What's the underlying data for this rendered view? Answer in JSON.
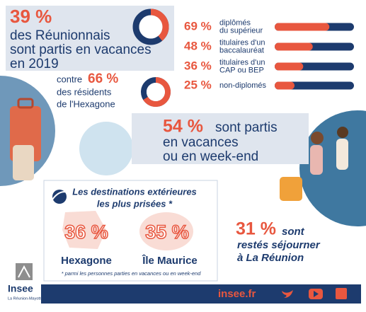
{
  "headline": {
    "value": 39,
    "label": "39 %",
    "lines": [
      "des Réunionnais",
      "sont partis en vacances",
      "en 2019"
    ]
  },
  "diplomas": [
    {
      "value": 69,
      "label": "69 %",
      "lines": [
        "diplômés",
        "du supérieur"
      ]
    },
    {
      "value": 48,
      "label": "48 %",
      "lines": [
        "titulaires d'un",
        "baccalauréat"
      ]
    },
    {
      "value": 36,
      "label": "36 %",
      "lines": [
        "titulaires d'un",
        "CAP ou BEP"
      ]
    },
    {
      "value": 25,
      "label": "25 %",
      "lines": [
        "non-diplomés"
      ]
    }
  ],
  "comparison": {
    "prefix": "contre",
    "value": 66,
    "label": "66 %",
    "lines": [
      "des résidents",
      "de l'Hexagone"
    ]
  },
  "trips": {
    "value": 54,
    "label": "54 %",
    "lines": [
      "sont partis",
      "en vacances",
      "ou en week-end"
    ]
  },
  "destinations": {
    "title": [
      "Les destinations extérieures",
      "les plus prisées *"
    ],
    "items": [
      {
        "label": "36 %",
        "name": "Hexagone"
      },
      {
        "label": "35 %",
        "name": "Île Maurice"
      }
    ],
    "footnote": "* parmi les personnes parties en vacances ou en week-end"
  },
  "stayed": {
    "label": "31 %",
    "lines": [
      "sont",
      "restés séjourner",
      "à La Réunion"
    ]
  },
  "logo": {
    "name": "Insee",
    "tagline": "La Réunion-Mayotte"
  },
  "footer": {
    "site": "insee.fr"
  }
}
